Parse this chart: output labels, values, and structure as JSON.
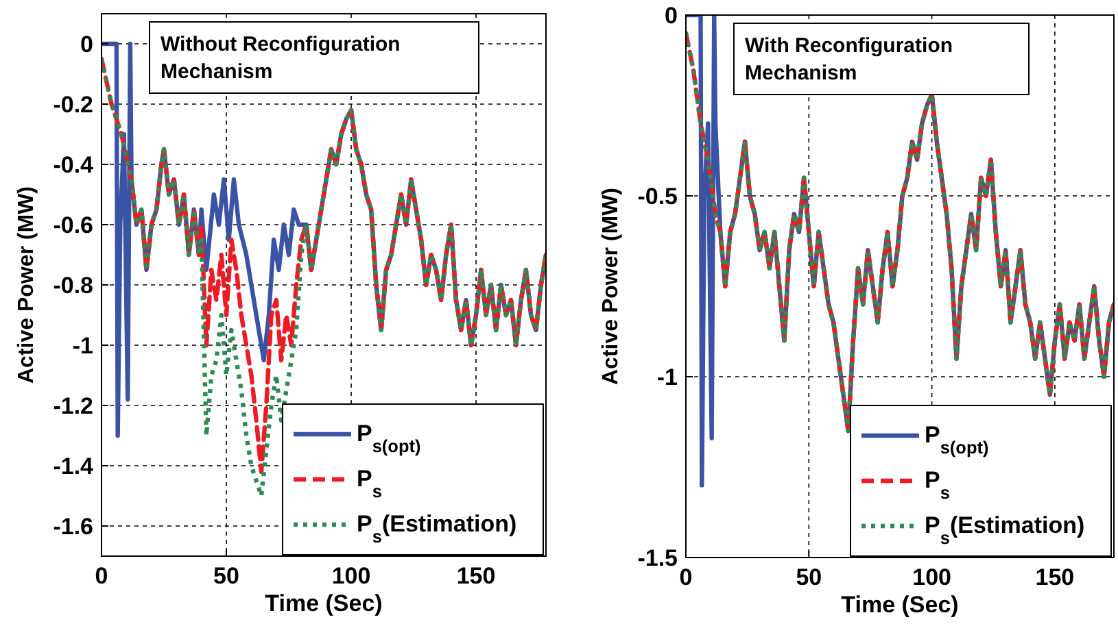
{
  "chart_data": [
    {
      "type": "line",
      "xlabel": "Time (Sec)",
      "ylabel": "Active Power (MW)",
      "annotations": [
        "Without Reconfiguration Mechanism"
      ],
      "xlim": [
        0,
        178
      ],
      "ylim": [
        -1.7,
        0.1
      ],
      "xticks": [
        0,
        50,
        100,
        150
      ],
      "yticks": [
        {
          "value": 0,
          "label": "0"
        },
        {
          "value": -0.2,
          "label": "-0.2"
        },
        {
          "value": -0.4,
          "label": "-0.4"
        },
        {
          "value": -0.6,
          "label": "-0.6"
        },
        {
          "value": -0.8,
          "label": "-0.8"
        },
        {
          "value": -1,
          "label": "-1"
        },
        {
          "value": -1.2,
          "label": "-1.2"
        },
        {
          "value": -1.4,
          "label": "-1.4"
        },
        {
          "value": -1.6,
          "label": "-1.6"
        }
      ],
      "grid": true,
      "legend": "bottom right",
      "series": [
        {
          "name": "P$_{s(opt)}$",
          "color": "#3a53a4",
          "line_style": "solid",
          "x": [
            0,
            6,
            6.5,
            7.5,
            9,
            10.5,
            11.5,
            12,
            14,
            16,
            18,
            20,
            22,
            24,
            25,
            27,
            29,
            31,
            33,
            35,
            37,
            39,
            40,
            42,
            45,
            47,
            49,
            51,
            53,
            55,
            58,
            61,
            63,
            65,
            67,
            69,
            71,
            73,
            75,
            77,
            79,
            82,
            84,
            86,
            88,
            90,
            92,
            94,
            96,
            98,
            100,
            102,
            104,
            106,
            108,
            110,
            112,
            114,
            116,
            118,
            120,
            122,
            124,
            126,
            128,
            130,
            132,
            134,
            136,
            138,
            140,
            142,
            144,
            146,
            148,
            150,
            152,
            154,
            156,
            158,
            160,
            162,
            164,
            166,
            168,
            170,
            172,
            174,
            176,
            178
          ],
          "values": [
            0,
            0,
            -1.3,
            -0.6,
            -0.3,
            -1.18,
            0,
            -0.45,
            -0.6,
            -0.55,
            -0.75,
            -0.6,
            -0.55,
            -0.4,
            -0.35,
            -0.5,
            -0.45,
            -0.6,
            -0.5,
            -0.7,
            -0.55,
            -0.7,
            -0.55,
            -0.75,
            -0.5,
            -0.6,
            -0.45,
            -0.65,
            -0.45,
            -0.6,
            -0.7,
            -0.85,
            -0.95,
            -1.05,
            -0.9,
            -0.65,
            -0.75,
            -0.6,
            -0.7,
            -0.55,
            -0.6,
            -0.6,
            -0.75,
            -0.65,
            -0.55,
            -0.45,
            -0.35,
            -0.4,
            -0.3,
            -0.25,
            -0.22,
            -0.35,
            -0.4,
            -0.5,
            -0.55,
            -0.8,
            -0.95,
            -0.75,
            -0.7,
            -0.6,
            -0.5,
            -0.6,
            -0.45,
            -0.55,
            -0.65,
            -0.8,
            -0.7,
            -0.75,
            -0.85,
            -0.7,
            -0.6,
            -0.85,
            -0.95,
            -0.85,
            -1,
            -0.9,
            -0.75,
            -0.9,
            -0.8,
            -0.95,
            -0.8,
            -0.9,
            -0.85,
            -1,
            -0.85,
            -0.75,
            -0.9,
            -0.95,
            -0.8,
            -0.7
          ]
        },
        {
          "name": "P$_{s}$",
          "color": "#ed1c24",
          "line_style": "dashed",
          "x": [
            0,
            4,
            8,
            12,
            14,
            16,
            18,
            20,
            22,
            24,
            25,
            27,
            29,
            31,
            33,
            35,
            37,
            39,
            40,
            42,
            44,
            46,
            48,
            50,
            52,
            54,
            56,
            58,
            60,
            62,
            64,
            66,
            68,
            70,
            72,
            74,
            76,
            78,
            80,
            82,
            84,
            86,
            88,
            90,
            92,
            94,
            96,
            98,
            100,
            102,
            104,
            106,
            108,
            110,
            112,
            114,
            116,
            118,
            120,
            122,
            124,
            126,
            128,
            130,
            132,
            134,
            136,
            138,
            140,
            142,
            144,
            146,
            148,
            150,
            152,
            154,
            156,
            158,
            160,
            162,
            164,
            166,
            168,
            170,
            172,
            174,
            176,
            178
          ],
          "values": [
            -0.05,
            -0.2,
            -0.3,
            -0.45,
            -0.6,
            -0.55,
            -0.75,
            -0.6,
            -0.55,
            -0.4,
            -0.35,
            -0.5,
            -0.45,
            -0.6,
            -0.5,
            -0.7,
            -0.55,
            -0.7,
            -0.6,
            -1,
            -0.75,
            -0.85,
            -0.7,
            -0.9,
            -0.65,
            -0.75,
            -0.9,
            -1,
            -1.1,
            -1.25,
            -1.42,
            -1.2,
            -0.9,
            -0.85,
            -1.05,
            -0.9,
            -1,
            -0.8,
            -0.65,
            -0.6,
            -0.75,
            -0.65,
            -0.55,
            -0.45,
            -0.35,
            -0.4,
            -0.3,
            -0.25,
            -0.22,
            -0.35,
            -0.4,
            -0.5,
            -0.55,
            -0.8,
            -0.95,
            -0.75,
            -0.7,
            -0.6,
            -0.5,
            -0.6,
            -0.45,
            -0.55,
            -0.65,
            -0.8,
            -0.7,
            -0.75,
            -0.85,
            -0.7,
            -0.6,
            -0.85,
            -0.95,
            -0.85,
            -1,
            -0.9,
            -0.75,
            -0.9,
            -0.8,
            -0.95,
            -0.8,
            -0.9,
            -0.85,
            -1,
            -0.85,
            -0.75,
            -0.9,
            -0.95,
            -0.8,
            -0.7
          ]
        },
        {
          "name": "P$_{s}$(Estimation)",
          "color": "#2e8b57",
          "line_style": "dotted",
          "x": [
            0,
            4,
            8,
            12,
            14,
            16,
            18,
            20,
            22,
            24,
            25,
            27,
            29,
            31,
            33,
            35,
            37,
            39,
            40,
            42,
            44,
            46,
            48,
            50,
            52,
            54,
            56,
            58,
            60,
            62,
            64,
            66,
            68,
            70,
            72,
            74,
            76,
            78,
            80,
            82,
            84,
            86,
            88,
            90,
            92,
            94,
            96,
            98,
            100,
            102,
            104,
            106,
            108,
            110,
            112,
            114,
            116,
            118,
            120,
            122,
            124,
            126,
            128,
            130,
            132,
            134,
            136,
            138,
            140,
            142,
            144,
            146,
            148,
            150,
            152,
            154,
            156,
            158,
            160,
            162,
            164,
            166,
            168,
            170,
            172,
            174,
            176,
            178
          ],
          "values": [
            -0.05,
            -0.2,
            -0.3,
            -0.45,
            -0.6,
            -0.55,
            -0.75,
            -0.6,
            -0.55,
            -0.4,
            -0.35,
            -0.5,
            -0.45,
            -0.6,
            -0.5,
            -0.7,
            -0.55,
            -0.7,
            -0.65,
            -1.3,
            -1.1,
            -1.05,
            -0.9,
            -1.1,
            -0.95,
            -1.05,
            -1.15,
            -1.3,
            -1.4,
            -1.45,
            -1.5,
            -1.35,
            -1.2,
            -1.1,
            -1.25,
            -1.15,
            -1.05,
            -0.95,
            -0.7,
            -0.6,
            -0.75,
            -0.65,
            -0.55,
            -0.45,
            -0.35,
            -0.4,
            -0.3,
            -0.25,
            -0.22,
            -0.35,
            -0.4,
            -0.5,
            -0.55,
            -0.8,
            -0.95,
            -0.75,
            -0.7,
            -0.6,
            -0.5,
            -0.6,
            -0.45,
            -0.55,
            -0.65,
            -0.8,
            -0.7,
            -0.75,
            -0.85,
            -0.7,
            -0.6,
            -0.85,
            -0.95,
            -0.85,
            -1,
            -0.9,
            -0.75,
            -0.9,
            -0.8,
            -0.95,
            -0.8,
            -0.9,
            -0.85,
            -1,
            -0.85,
            -0.75,
            -0.9,
            -0.95,
            -0.8,
            -0.7
          ]
        }
      ]
    },
    {
      "type": "line",
      "xlabel": "Time (Sec)",
      "ylabel": "Active Power (MW)",
      "annotations": [
        "With Reconfiguration Mechanism"
      ],
      "xlim": [
        0,
        174
      ],
      "ylim": [
        -1.5,
        0
      ],
      "xticks": [
        0,
        50,
        100,
        150
      ],
      "yticks": [
        {
          "value": 0,
          "label": "0"
        },
        {
          "value": -0.5,
          "label": "-0.5"
        },
        {
          "value": -1,
          "label": "-1"
        },
        {
          "value": -1.5,
          "label": "-1.5"
        }
      ],
      "grid": true,
      "legend": "bottom right",
      "series": [
        {
          "name": "P$_{s(opt)}$",
          "color": "#3a53a4",
          "line_style": "solid",
          "x": [
            0,
            6,
            6.5,
            7.5,
            9,
            10.5,
            11.5,
            12,
            14,
            16,
            18,
            20,
            22,
            24,
            26,
            28,
            30,
            32,
            34,
            36,
            38,
            40,
            42,
            44,
            46,
            48,
            50,
            52,
            54,
            56,
            58,
            60,
            62,
            64,
            66,
            68,
            70,
            72,
            74,
            76,
            78,
            80,
            82,
            84,
            86,
            88,
            90,
            92,
            94,
            96,
            98,
            100,
            102,
            104,
            106,
            108,
            110,
            112,
            114,
            116,
            118,
            120,
            122,
            124,
            126,
            128,
            130,
            132,
            134,
            136,
            138,
            140,
            142,
            144,
            146,
            148,
            150,
            152,
            154,
            156,
            158,
            160,
            162,
            164,
            166,
            168,
            170,
            172,
            174
          ],
          "values": [
            0,
            0,
            -1.3,
            -0.5,
            -0.3,
            -1.17,
            0,
            -0.3,
            -0.6,
            -0.75,
            -0.6,
            -0.55,
            -0.45,
            -0.35,
            -0.5,
            -0.55,
            -0.65,
            -0.6,
            -0.7,
            -0.6,
            -0.75,
            -0.9,
            -0.65,
            -0.55,
            -0.6,
            -0.45,
            -0.6,
            -0.75,
            -0.6,
            -0.7,
            -0.8,
            -0.85,
            -0.95,
            -1.05,
            -1.15,
            -0.9,
            -0.7,
            -0.8,
            -0.65,
            -0.75,
            -0.85,
            -0.7,
            -0.6,
            -0.75,
            -0.65,
            -0.5,
            -0.45,
            -0.35,
            -0.4,
            -0.3,
            -0.25,
            -0.22,
            -0.35,
            -0.45,
            -0.55,
            -0.7,
            -0.95,
            -0.75,
            -0.65,
            -0.55,
            -0.65,
            -0.45,
            -0.5,
            -0.4,
            -0.6,
            -0.75,
            -0.65,
            -0.85,
            -0.75,
            -0.65,
            -0.8,
            -0.85,
            -0.95,
            -0.85,
            -0.95,
            -1.05,
            -0.9,
            -0.8,
            -0.95,
            -0.85,
            -0.9,
            -0.8,
            -0.95,
            -0.85,
            -0.75,
            -0.9,
            -1,
            -0.85,
            -0.8
          ]
        },
        {
          "name": "P$_{s}$",
          "color": "#ed1c24",
          "line_style": "dashed",
          "x": [
            0,
            3,
            6,
            9,
            12,
            14,
            16,
            18,
            20,
            22,
            24,
            26,
            28,
            30,
            32,
            34,
            36,
            38,
            40,
            42,
            44,
            46,
            48,
            50,
            52,
            54,
            56,
            58,
            60,
            62,
            64,
            66,
            68,
            70,
            72,
            74,
            76,
            78,
            80,
            82,
            84,
            86,
            88,
            90,
            92,
            94,
            96,
            98,
            100,
            102,
            104,
            106,
            108,
            110,
            112,
            114,
            116,
            118,
            120,
            122,
            124,
            126,
            128,
            130,
            132,
            134,
            136,
            138,
            140,
            142,
            144,
            146,
            148,
            150,
            152,
            154,
            156,
            158,
            160,
            162,
            164,
            166,
            168,
            170,
            172,
            174
          ],
          "values": [
            -0.05,
            -0.15,
            -0.3,
            -0.4,
            -0.55,
            -0.6,
            -0.75,
            -0.6,
            -0.55,
            -0.45,
            -0.35,
            -0.5,
            -0.55,
            -0.65,
            -0.6,
            -0.7,
            -0.6,
            -0.75,
            -0.9,
            -0.65,
            -0.55,
            -0.6,
            -0.45,
            -0.6,
            -0.75,
            -0.6,
            -0.7,
            -0.8,
            -0.85,
            -0.95,
            -1.05,
            -1.15,
            -0.9,
            -0.7,
            -0.8,
            -0.65,
            -0.75,
            -0.85,
            -0.7,
            -0.6,
            -0.75,
            -0.65,
            -0.5,
            -0.45,
            -0.35,
            -0.4,
            -0.3,
            -0.25,
            -0.22,
            -0.35,
            -0.45,
            -0.55,
            -0.7,
            -0.95,
            -0.75,
            -0.65,
            -0.55,
            -0.65,
            -0.45,
            -0.5,
            -0.4,
            -0.6,
            -0.75,
            -0.65,
            -0.85,
            -0.75,
            -0.65,
            -0.8,
            -0.85,
            -0.95,
            -0.85,
            -0.95,
            -1.05,
            -0.9,
            -0.8,
            -0.95,
            -0.85,
            -0.9,
            -0.8,
            -0.95,
            -0.85,
            -0.75,
            -0.9,
            -1,
            -0.85,
            -0.8
          ]
        },
        {
          "name": "P$_{s}$(Estimation)",
          "color": "#2e8b57",
          "line_style": "dotted",
          "x": [
            0,
            3,
            6,
            9,
            12,
            14,
            16,
            18,
            20,
            22,
            24,
            26,
            28,
            30,
            32,
            34,
            36,
            38,
            40,
            42,
            44,
            46,
            48,
            50,
            52,
            54,
            56,
            58,
            60,
            62,
            64,
            66,
            68,
            70,
            72,
            74,
            76,
            78,
            80,
            82,
            84,
            86,
            88,
            90,
            92,
            94,
            96,
            98,
            100,
            102,
            104,
            106,
            108,
            110,
            112,
            114,
            116,
            118,
            120,
            122,
            124,
            126,
            128,
            130,
            132,
            134,
            136,
            138,
            140,
            142,
            144,
            146,
            148,
            150,
            152,
            154,
            156,
            158,
            160,
            162,
            164,
            166,
            168,
            170,
            172,
            174
          ],
          "values": [
            -0.05,
            -0.15,
            -0.3,
            -0.4,
            -0.55,
            -0.6,
            -0.75,
            -0.6,
            -0.55,
            -0.45,
            -0.35,
            -0.5,
            -0.55,
            -0.65,
            -0.6,
            -0.7,
            -0.6,
            -0.75,
            -0.9,
            -0.65,
            -0.55,
            -0.6,
            -0.45,
            -0.6,
            -0.75,
            -0.6,
            -0.7,
            -0.8,
            -0.85,
            -0.95,
            -1.05,
            -1.15,
            -0.9,
            -0.7,
            -0.8,
            -0.65,
            -0.75,
            -0.85,
            -0.7,
            -0.6,
            -0.75,
            -0.65,
            -0.5,
            -0.45,
            -0.35,
            -0.4,
            -0.3,
            -0.25,
            -0.22,
            -0.35,
            -0.45,
            -0.55,
            -0.7,
            -0.95,
            -0.75,
            -0.65,
            -0.55,
            -0.65,
            -0.45,
            -0.5,
            -0.4,
            -0.6,
            -0.75,
            -0.65,
            -0.85,
            -0.75,
            -0.65,
            -0.8,
            -0.85,
            -0.95,
            -0.85,
            -0.95,
            -1.05,
            -0.9,
            -0.8,
            -0.95,
            -0.85,
            -0.9,
            -0.8,
            -0.95,
            -0.85,
            -0.75,
            -0.9,
            -1,
            -0.85,
            -0.8
          ]
        }
      ]
    }
  ]
}
